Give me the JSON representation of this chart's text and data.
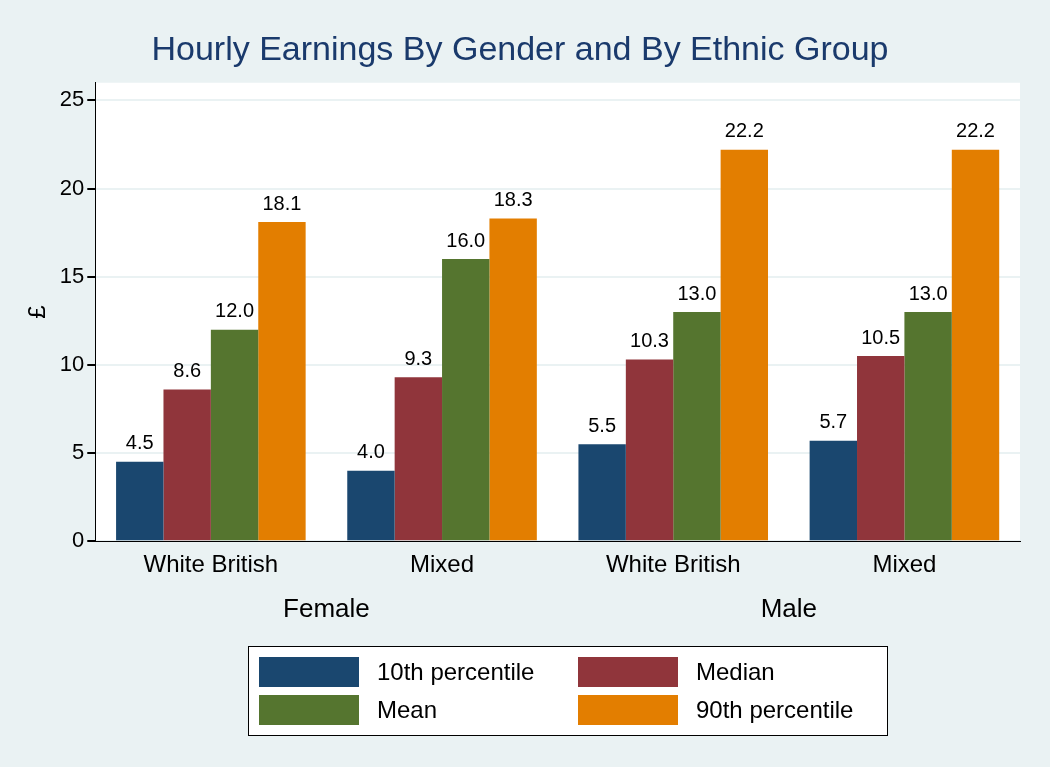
{
  "chart_data": {
    "type": "bar",
    "title": "Hourly Earnings By Gender and By Ethnic Group",
    "ylabel": "£",
    "categories": [
      "White British",
      "Mixed",
      "White British",
      "Mixed"
    ],
    "annotations": [
      "Female",
      "Male"
    ],
    "series": [
      {
        "name": "10th percentile",
        "color": "#1a476f",
        "values": [
          4.5,
          4.0,
          5.5,
          5.7
        ],
        "value_labels": [
          "4.5",
          "4.0",
          "5.5",
          "5.7"
        ]
      },
      {
        "name": "Median",
        "color": "#90353b",
        "values": [
          8.6,
          9.3,
          10.3,
          10.5
        ],
        "value_labels": [
          "8.6",
          "9.3",
          "10.3",
          "10.5"
        ]
      },
      {
        "name": "Mean",
        "color": "#55752f",
        "values": [
          12.0,
          16.0,
          13.0,
          13.0
        ],
        "value_labels": [
          "12.0",
          "16.0",
          "13.0",
          "13.0"
        ]
      },
      {
        "name": "90th percentile",
        "color": "#e37e00",
        "values": [
          18.1,
          18.3,
          22.2,
          22.2
        ],
        "value_labels": [
          "18.1",
          "18.3",
          "22.2",
          "22.2"
        ]
      }
    ],
    "ylim": [
      0,
      26
    ],
    "yticks": [
      0,
      5,
      10,
      15,
      20,
      25
    ],
    "grid": "y",
    "legend": "bottom"
  }
}
